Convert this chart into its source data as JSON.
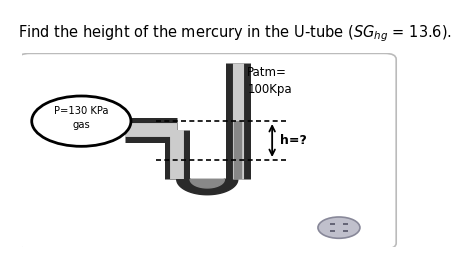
{
  "title": "Find the height of the mercury in the U-tube ($SG_{hg}$ = 13.6).",
  "title_fontsize": 10.5,
  "bg_color": "#ffffff",
  "box_facecolor": "#ffffff",
  "box_edgecolor": "#bbbbbb",
  "tube_dark": "#2a2a2a",
  "tube_mid": "#888888",
  "tube_light": "#cccccc",
  "mercury_color": "#888888",
  "gas_circle_edge": "#000000",
  "gas_circle_face": "#ffffff",
  "patm_label": "Patm=\n100Kpa",
  "gas_label": "P=130 KPa\ngas",
  "h_label": "h=?",
  "icon_color": "#9999aa"
}
